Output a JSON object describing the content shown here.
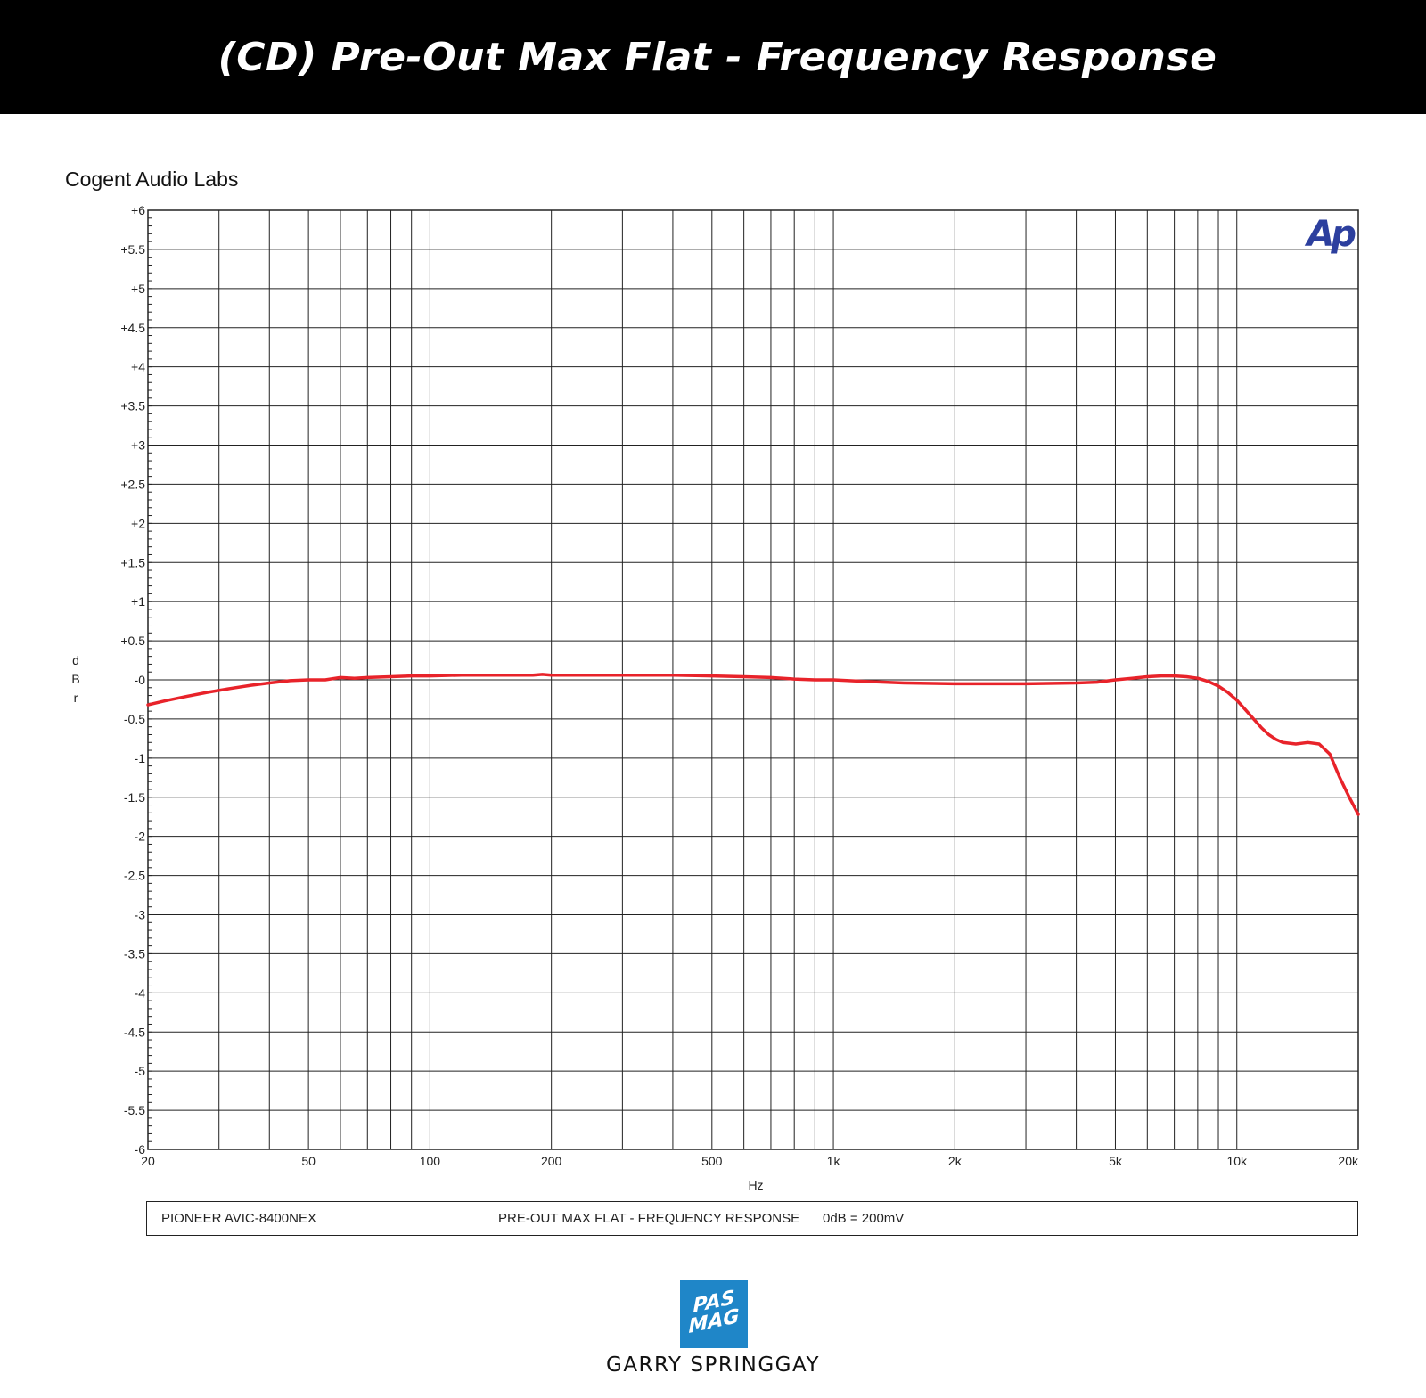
{
  "header": {
    "title": "(CD) Pre-Out Max Flat - Frequency Response"
  },
  "lab": {
    "name": "Cogent Audio Labs"
  },
  "chart_data": {
    "type": "line",
    "title": "PRE-OUT MAX FLAT - FREQUENCY RESPONSE",
    "xlabel": "Hz",
    "ylabel": "dBr",
    "x_scale": "log",
    "xlim": [
      20,
      20000
    ],
    "ylim": [
      -6,
      6
    ],
    "grid": true,
    "brand_mark": "Ap",
    "x_ticks": [
      {
        "value": 20,
        "label": "20"
      },
      {
        "value": 50,
        "label": "50"
      },
      {
        "value": 100,
        "label": "100"
      },
      {
        "value": 200,
        "label": "200"
      },
      {
        "value": 500,
        "label": "500"
      },
      {
        "value": 1000,
        "label": "1k"
      },
      {
        "value": 2000,
        "label": "2k"
      },
      {
        "value": 5000,
        "label": "5k"
      },
      {
        "value": 10000,
        "label": "10k"
      },
      {
        "value": 20000,
        "label": "20k"
      }
    ],
    "y_ticks": [
      {
        "value": 6,
        "label": "+6"
      },
      {
        "value": 5.5,
        "label": "+5.5"
      },
      {
        "value": 5,
        "label": "+5"
      },
      {
        "value": 4.5,
        "label": "+4.5"
      },
      {
        "value": 4,
        "label": "+4"
      },
      {
        "value": 3.5,
        "label": "+3.5"
      },
      {
        "value": 3,
        "label": "+3"
      },
      {
        "value": 2.5,
        "label": "+2.5"
      },
      {
        "value": 2,
        "label": "+2"
      },
      {
        "value": 1.5,
        "label": "+1.5"
      },
      {
        "value": 1,
        "label": "+1"
      },
      {
        "value": 0.5,
        "label": "+0.5"
      },
      {
        "value": 0,
        "label": "-0"
      },
      {
        "value": -0.5,
        "label": "-0.5"
      },
      {
        "value": -1,
        "label": "-1"
      },
      {
        "value": -1.5,
        "label": "-1.5"
      },
      {
        "value": -2,
        "label": "-2"
      },
      {
        "value": -2.5,
        "label": "-2.5"
      },
      {
        "value": -3,
        "label": "-3"
      },
      {
        "value": -3.5,
        "label": "-3.5"
      },
      {
        "value": -4,
        "label": "-4"
      },
      {
        "value": -4.5,
        "label": "-4.5"
      },
      {
        "value": -5,
        "label": "-5"
      },
      {
        "value": -5.5,
        "label": "-5.5"
      },
      {
        "value": -6,
        "label": "-6"
      }
    ],
    "series": [
      {
        "color": "#e8232a",
        "x": [
          20,
          22,
          25,
          28,
          32,
          36,
          40,
          45,
          50,
          55,
          60,
          65,
          70,
          80,
          90,
          100,
          120,
          150,
          180,
          190,
          200,
          300,
          400,
          500,
          600,
          700,
          800,
          900,
          1000,
          1200,
          1500,
          2000,
          2500,
          3000,
          4000,
          4500,
          5000,
          5500,
          6000,
          6500,
          7000,
          7500,
          8000,
          8500,
          9000,
          9500,
          10000,
          10500,
          11000,
          11500,
          12000,
          12500,
          13000,
          14000,
          15000,
          16000,
          17000,
          18000,
          19000,
          20000
        ],
        "y": [
          -0.32,
          -0.27,
          -0.21,
          -0.16,
          -0.11,
          -0.07,
          -0.04,
          -0.01,
          0.0,
          0.0,
          0.03,
          0.02,
          0.03,
          0.04,
          0.05,
          0.05,
          0.06,
          0.06,
          0.06,
          0.07,
          0.06,
          0.06,
          0.06,
          0.05,
          0.04,
          0.03,
          0.01,
          0.0,
          0.0,
          -0.02,
          -0.04,
          -0.05,
          -0.05,
          -0.05,
          -0.04,
          -0.03,
          0.0,
          0.02,
          0.04,
          0.05,
          0.05,
          0.04,
          0.02,
          -0.02,
          -0.08,
          -0.16,
          -0.26,
          -0.38,
          -0.5,
          -0.61,
          -0.7,
          -0.76,
          -0.8,
          -0.82,
          -0.8,
          -0.82,
          -0.95,
          -1.25,
          -1.5,
          -1.72
        ]
      }
    ]
  },
  "info": {
    "device": "PIONEER AVIC-8400NEX",
    "measurement": "PRE-OUT MAX FLAT - FREQUENCY RESPONSE",
    "reference": "0dB = 200mV"
  },
  "logo": {
    "line1": "PAS",
    "line2": "MAG"
  },
  "author": {
    "name": "GARRY SPRINGGAY"
  }
}
